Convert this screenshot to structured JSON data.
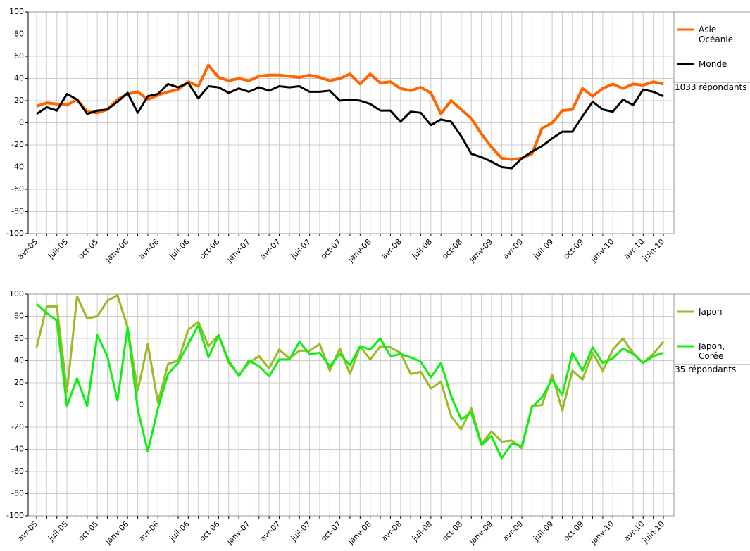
{
  "chart_data": [
    {
      "type": "line",
      "categories": [
        "avr-05",
        null,
        null,
        "juil-05",
        null,
        null,
        "oct-05",
        null,
        null,
        "janv-06",
        null,
        null,
        "avr-06",
        null,
        null,
        "juil-06",
        null,
        null,
        "oct-06",
        null,
        null,
        "janv-07",
        null,
        null,
        "avr-07",
        null,
        null,
        "juil-07",
        null,
        null,
        "oct-07",
        null,
        null,
        "janv-08",
        null,
        null,
        "avr-08",
        null,
        null,
        "juil-08",
        null,
        null,
        "oct-08",
        null,
        null,
        "janv-09",
        null,
        null,
        "avr-09",
        null,
        null,
        "juil-09",
        null,
        null,
        "oct-09",
        null,
        null,
        "janv-10",
        null,
        null,
        "avr-10",
        null,
        "juin-10"
      ],
      "series": [
        {
          "name": "Asie Océanie",
          "color": "#ff6600",
          "values": [
            15,
            18,
            17,
            16,
            21,
            10,
            9,
            12,
            21,
            26,
            28,
            21,
            25,
            28,
            30,
            37,
            33,
            52,
            41,
            38,
            40,
            38,
            42,
            43,
            43,
            42,
            41,
            43,
            41,
            38,
            40,
            44,
            35,
            44,
            36,
            37,
            31,
            29,
            32,
            27,
            8,
            20,
            12,
            4,
            -10,
            -22,
            -32,
            -33,
            -32,
            -28,
            -5,
            0,
            11,
            12,
            31,
            24,
            31,
            35,
            31,
            35,
            34,
            37,
            35
          ]
        },
        {
          "name": "Monde",
          "color": "#000000",
          "values": [
            8,
            14,
            11,
            26,
            21,
            8,
            11,
            12,
            19,
            27,
            9,
            24,
            26,
            35,
            32,
            36,
            22,
            33,
            32,
            27,
            31,
            28,
            32,
            29,
            33,
            32,
            33,
            28,
            28,
            29,
            20,
            21,
            20,
            17,
            11,
            11,
            1,
            10,
            9,
            -2,
            3,
            1,
            -12,
            -28,
            -31,
            -35,
            -40,
            -41,
            -32,
            -26,
            -21,
            -14,
            -8,
            -8,
            6,
            19,
            12,
            10,
            21,
            16,
            30,
            28,
            24
          ]
        }
      ],
      "annotation": "1033 répondants",
      "ylim": [
        -100,
        100
      ],
      "yticks": [
        -100,
        -80,
        -60,
        -40,
        -20,
        0,
        20,
        40,
        60,
        80,
        100
      ],
      "grid": true
    },
    {
      "type": "line",
      "categories": [
        "avr-05",
        null,
        null,
        "juil-05",
        null,
        null,
        "oct-05",
        null,
        null,
        "janv-06",
        null,
        null,
        "avr-06",
        null,
        null,
        "juil-06",
        null,
        null,
        "oct-06",
        null,
        null,
        "janv-07",
        null,
        null,
        "avr-07",
        null,
        null,
        "juil-07",
        null,
        null,
        "oct-07",
        null,
        null,
        "janv-08",
        null,
        null,
        "avr-08",
        null,
        null,
        "juil-08",
        null,
        null,
        "oct-08",
        null,
        null,
        "janv-09",
        null,
        null,
        "avr-09",
        null,
        null,
        "juil-09",
        null,
        null,
        "oct-09",
        null,
        null,
        "janv-10",
        null,
        null,
        "avr-10",
        null,
        "juin-10"
      ],
      "series": [
        {
          "name": "Japon",
          "color": "#99bb22",
          "values": [
            52,
            89,
            89,
            12,
            98,
            78,
            80,
            94,
            99,
            70,
            13,
            55,
            2,
            37,
            40,
            68,
            75,
            53,
            63,
            38,
            27,
            38,
            44,
            33,
            50,
            42,
            49,
            49,
            55,
            31,
            51,
            28,
            53,
            41,
            53,
            52,
            47,
            28,
            30,
            15,
            21,
            -10,
            -22,
            -3,
            -35,
            -24,
            -33,
            -32,
            -39,
            -1,
            0,
            27,
            -5,
            31,
            23,
            47,
            31,
            50,
            60,
            47,
            38,
            46,
            57
          ]
        },
        {
          "name": "Japon, Corée",
          "color": "#11ee11",
          "values": [
            91,
            83,
            76,
            -1,
            24,
            -1,
            63,
            44,
            4,
            70,
            -4,
            -42,
            -3,
            28,
            38,
            55,
            72,
            43,
            63,
            40,
            26,
            40,
            35,
            26,
            41,
            41,
            57,
            46,
            47,
            35,
            46,
            36,
            53,
            50,
            60,
            44,
            46,
            43,
            39,
            25,
            38,
            8,
            -13,
            -7,
            -36,
            -28,
            -48,
            -35,
            -37,
            -2,
            7,
            23,
            9,
            47,
            31,
            52,
            38,
            42,
            51,
            46,
            38,
            44,
            47
          ]
        }
      ],
      "annotation": "35 répondants",
      "ylim": [
        -100,
        100
      ],
      "yticks": [
        -100,
        -80,
        -60,
        -40,
        -20,
        0,
        20,
        40,
        60,
        80,
        100
      ],
      "grid": true
    }
  ]
}
